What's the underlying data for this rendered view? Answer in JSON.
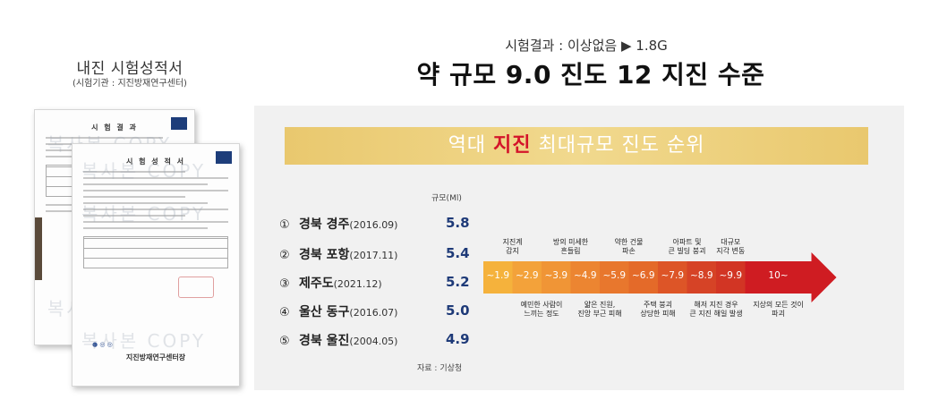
{
  "left": {
    "title": "내진 시험성적서",
    "subtitle": "(시험기관 : 지진방재연구센터)"
  },
  "header": {
    "result_line": "시험결과 : 이상없음 ▶ 1.8G",
    "headline": "약 규모 9.0 진도 12 지진 수준"
  },
  "documents": {
    "doc1_title": "시 험 결 과",
    "doc2_title": "시 험 성 적 서",
    "watermark": "복사본 COPY",
    "footer": "지진방재연구센터장",
    "logos": "● ◎ ◎"
  },
  "banner": {
    "prefix": "역대 ",
    "highlight": "지진",
    "suffix": " 최대규모 진도 순위",
    "highlight_color": "#d4142a"
  },
  "ranking": {
    "scale_header": "규모(Ml)",
    "items": [
      {
        "num": "①",
        "place": "경북 경주",
        "date": "(2016.09)",
        "magnitude": "5.8"
      },
      {
        "num": "②",
        "place": "경북 포항",
        "date": "(2017.11)",
        "magnitude": "5.4"
      },
      {
        "num": "③",
        "place": "제주도",
        "date": "(2021.12)",
        "magnitude": "5.2"
      },
      {
        "num": "④",
        "place": "울산 동구",
        "date": "(2016.07)",
        "magnitude": "5.0"
      },
      {
        "num": "⑤",
        "place": "경북 울진",
        "date": "(2004.05)",
        "magnitude": "4.9"
      }
    ],
    "source": "자료 : 기상청"
  },
  "scale": {
    "segments": [
      "~1.9",
      "~2.9",
      "~3.9",
      "~4.9",
      "~5.9",
      "~6.9",
      "~7.9",
      "~8.9",
      "~9.9",
      "10~"
    ],
    "colors": [
      "#f5b23c",
      "#f3a23a",
      "#f09536",
      "#ec8531",
      "#e8772d",
      "#e46a29",
      "#dd5527",
      "#d64326",
      "#d23524",
      "#cf1c22"
    ],
    "top_labels": [
      [
        "지진계",
        "감지"
      ],
      [
        "방의 미세한",
        "흔들림"
      ],
      [
        "약한 건물",
        "파손"
      ],
      [
        "아파트 및",
        "큰 빌딩 붕괴"
      ],
      [
        "대규모",
        "지각 변동"
      ]
    ],
    "bottom_labels": [
      [
        "예민한 사람이",
        "느끼는 정도"
      ],
      [
        "얇은 진원,",
        "진앙 부근 피해"
      ],
      [
        "주택 붕괴",
        "상당한 피해"
      ],
      [
        "해저 지진 경우",
        "큰 지진 해일 발생"
      ],
      [
        "지상의 모든 것이",
        "파괴"
      ]
    ]
  }
}
